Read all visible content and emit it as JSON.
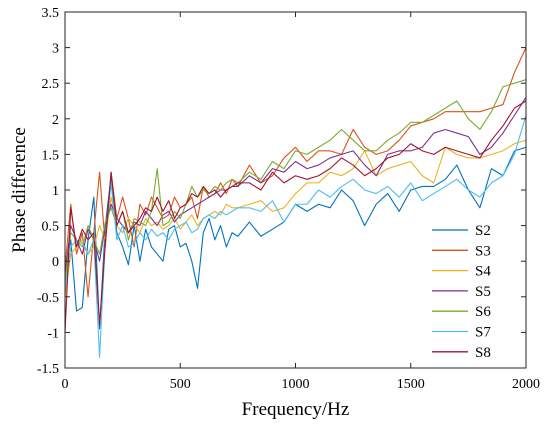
{
  "chart_data": {
    "type": "line",
    "xlabel": "Frequency/Hz",
    "ylabel": "Phase difference",
    "xlim": [
      0,
      2000
    ],
    "ylim": [
      -1.5,
      3.5
    ],
    "xticks": [
      0,
      500,
      1000,
      1500,
      2000
    ],
    "xtick_labels": [
      "0",
      "500",
      "1000",
      "1500",
      "2000"
    ],
    "yticks": [
      -1.5,
      -1,
      -0.5,
      0,
      0.5,
      1,
      1.5,
      2,
      2.5,
      3,
      3.5
    ],
    "ytick_labels": [
      "-1.5",
      "-1",
      "-0.5",
      "0",
      "0.5",
      "1",
      "1.5",
      "2",
      "2.5",
      "3",
      "3.5"
    ],
    "grid": false,
    "legend": "bottom-right",
    "x": [
      0,
      25,
      50,
      75,
      100,
      125,
      150,
      175,
      200,
      225,
      250,
      275,
      300,
      325,
      350,
      375,
      400,
      425,
      450,
      475,
      500,
      525,
      550,
      575,
      600,
      625,
      650,
      675,
      700,
      725,
      750,
      800,
      850,
      900,
      950,
      1000,
      1050,
      1100,
      1150,
      1200,
      1250,
      1300,
      1350,
      1400,
      1450,
      1500,
      1550,
      1600,
      1650,
      1700,
      1750,
      1800,
      1850,
      1900,
      1950,
      2000
    ],
    "series": [
      {
        "name": "S2",
        "color": "#0072BD",
        "values": [
          -0.1,
          0.3,
          -0.7,
          -0.65,
          0.3,
          0.9,
          -0.95,
          0.5,
          1.2,
          0.4,
          0.2,
          -0.05,
          0.5,
          0.0,
          0.45,
          0.2,
          0.1,
          0.0,
          0.45,
          0.5,
          0.2,
          0.25,
          0.0,
          -0.38,
          0.4,
          0.6,
          0.3,
          0.5,
          0.2,
          0.4,
          0.35,
          0.55,
          0.35,
          0.45,
          0.55,
          0.8,
          0.7,
          0.8,
          0.75,
          1.0,
          0.85,
          0.5,
          0.8,
          0.95,
          0.7,
          1.0,
          1.05,
          1.05,
          1.15,
          1.35,
          1.0,
          0.75,
          1.3,
          1.2,
          1.55,
          1.6
        ]
      },
      {
        "name": "S3",
        "color": "#D95319",
        "values": [
          -0.1,
          0.8,
          0.1,
          0.4,
          -0.5,
          0.4,
          1.25,
          0.2,
          1.25,
          0.6,
          0.9,
          0.6,
          0.2,
          0.8,
          0.65,
          0.9,
          0.75,
          0.6,
          0.65,
          0.9,
          0.75,
          0.8,
          0.9,
          0.6,
          1.05,
          0.9,
          0.95,
          1.1,
          0.95,
          1.15,
          1.05,
          1.35,
          1.1,
          1.2,
          1.45,
          1.6,
          1.4,
          1.55,
          1.55,
          1.5,
          1.85,
          1.6,
          1.5,
          1.55,
          1.7,
          1.9,
          1.95,
          2.0,
          2.1,
          2.1,
          2.1,
          2.1,
          2.15,
          2.2,
          2.65,
          3.0
        ]
      },
      {
        "name": "S4",
        "color": "#EDB120",
        "values": [
          -0.5,
          0.1,
          0.2,
          0.3,
          0.1,
          0.2,
          0.5,
          0.3,
          0.9,
          0.5,
          0.4,
          0.6,
          0.5,
          0.4,
          0.6,
          0.5,
          0.55,
          0.45,
          0.5,
          0.6,
          0.45,
          0.55,
          0.65,
          0.5,
          0.6,
          0.65,
          0.7,
          0.65,
          0.8,
          0.75,
          0.75,
          0.8,
          0.85,
          0.7,
          0.75,
          0.95,
          1.1,
          1.1,
          1.25,
          1.2,
          1.3,
          1.55,
          1.2,
          1.3,
          1.35,
          1.4,
          1.2,
          1.1,
          1.6,
          1.5,
          1.45,
          1.45,
          1.5,
          1.55,
          1.65,
          1.7
        ]
      },
      {
        "name": "S5",
        "color": "#7E2F8E",
        "values": [
          -0.2,
          0.5,
          0.3,
          0.1,
          0.45,
          0.3,
          0.0,
          0.5,
          0.8,
          0.6,
          0.5,
          0.4,
          0.55,
          0.5,
          0.7,
          0.6,
          0.5,
          0.65,
          0.7,
          0.55,
          0.65,
          0.7,
          0.75,
          0.8,
          0.85,
          0.9,
          0.95,
          1.0,
          1.0,
          1.05,
          1.05,
          1.2,
          1.1,
          1.3,
          1.25,
          1.4,
          1.3,
          1.35,
          1.45,
          1.5,
          1.55,
          1.35,
          1.2,
          1.5,
          1.55,
          1.55,
          1.6,
          1.8,
          1.85,
          1.8,
          1.75,
          1.5,
          1.6,
          1.8,
          2.05,
          2.3
        ]
      },
      {
        "name": "S6",
        "color": "#77AC30",
        "values": [
          -0.3,
          0.4,
          0.3,
          0.2,
          0.5,
          0.3,
          0.1,
          0.55,
          0.75,
          0.5,
          0.7,
          0.3,
          0.6,
          0.55,
          0.5,
          0.7,
          1.3,
          0.5,
          0.55,
          0.7,
          0.6,
          0.8,
          1.05,
          0.9,
          1.0,
          0.95,
          1.05,
          1.0,
          1.1,
          1.15,
          1.1,
          1.25,
          1.15,
          1.4,
          1.3,
          1.55,
          1.5,
          1.6,
          1.7,
          1.85,
          1.7,
          1.55,
          1.55,
          1.7,
          1.8,
          1.95,
          1.95,
          2.05,
          2.15,
          2.25,
          2.0,
          1.85,
          2.1,
          2.45,
          2.5,
          2.55
        ]
      },
      {
        "name": "S7",
        "color": "#4DBEEE",
        "values": [
          -0.4,
          0.2,
          0.3,
          0.25,
          0.1,
          0.3,
          -1.35,
          0.3,
          1.1,
          0.3,
          0.5,
          0.2,
          0.25,
          0.4,
          0.3,
          0.45,
          0.35,
          0.4,
          0.3,
          0.45,
          0.5,
          0.55,
          0.4,
          0.45,
          0.6,
          0.65,
          0.6,
          0.7,
          0.65,
          0.7,
          0.75,
          0.75,
          0.7,
          0.85,
          0.55,
          0.8,
          0.8,
          1.0,
          0.9,
          1.05,
          1.15,
          1.0,
          0.95,
          1.05,
          0.9,
          1.1,
          0.85,
          0.95,
          1.05,
          1.15,
          1.0,
          0.9,
          1.1,
          1.2,
          1.5,
          2.05
        ]
      },
      {
        "name": "S8",
        "color": "#A2142F",
        "values": [
          -1.0,
          0.75,
          0.2,
          0.45,
          0.3,
          0.4,
          -0.9,
          0.25,
          1.25,
          0.5,
          0.7,
          0.4,
          0.5,
          0.6,
          0.75,
          0.7,
          0.9,
          0.7,
          0.85,
          0.6,
          0.75,
          0.8,
          0.95,
          0.9,
          1.05,
          0.95,
          1.0,
          0.9,
          1.0,
          1.05,
          1.1,
          1.1,
          1.0,
          1.25,
          1.1,
          1.2,
          1.15,
          1.2,
          1.3,
          1.45,
          1.35,
          1.2,
          1.3,
          1.45,
          1.5,
          1.65,
          1.55,
          1.5,
          1.6,
          1.55,
          1.5,
          1.45,
          1.7,
          1.9,
          2.15,
          2.25
        ]
      }
    ]
  }
}
